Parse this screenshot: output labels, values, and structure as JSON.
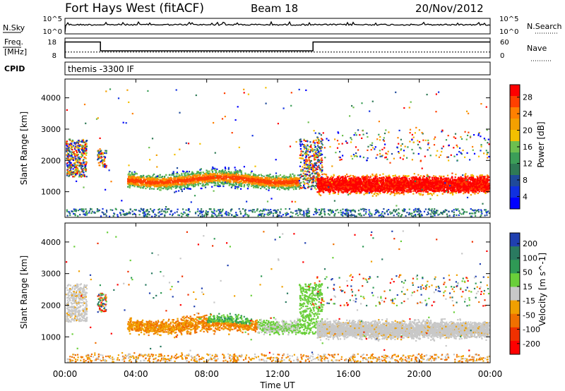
{
  "header": {
    "station": "Fort Hays West (fitACF)",
    "beam": "Beam 18",
    "date": "20/Nov/2012"
  },
  "chart_data": [
    {
      "type": "line",
      "name": "sky-search-panel",
      "left_label": "N.Sky",
      "right_label": "N.Search",
      "left_ticks": [
        "10^5",
        "10^0"
      ],
      "right_ticks": [
        "10^5",
        "10^0"
      ]
    },
    {
      "type": "line",
      "name": "freq-nave-panel",
      "left_label_top": "Freq.",
      "left_label_bottom": "[MHz]",
      "right_label": "Nave",
      "left_ticks": [
        "18",
        "8"
      ],
      "right_ticks": [
        "60",
        "0"
      ],
      "freq_series": {
        "x": [
          0.0,
          0.0,
          2.0,
          2.0,
          14.0,
          14.0,
          24.0
        ],
        "y": [
          8,
          17,
          17,
          12,
          12,
          17,
          17
        ]
      },
      "nave_series": {
        "x": [
          0.0,
          2.0,
          14.0,
          24.0
        ],
        "y": [
          20,
          20,
          20,
          20
        ]
      }
    },
    {
      "type": "label",
      "name": "cpid-panel",
      "label": "CPID",
      "text": "themis -3300 IF"
    },
    {
      "type": "heatmap",
      "name": "power-panel",
      "ylabel": "Slant Range [km]",
      "ylim": [
        180,
        4600
      ],
      "yticks": [
        "1000",
        "2000",
        "3000",
        "4000"
      ],
      "xlim": [
        0,
        24
      ],
      "colorbar_label": "Power [dB]",
      "colorbar_ticks": [
        "28",
        "24",
        "20",
        "16",
        "12",
        "8",
        "4"
      ],
      "colors": [
        "#ff0000",
        "#ff4000",
        "#ff8000",
        "#f4a000",
        "#f3c000",
        "#6dbf4f",
        "#3c9e58",
        "#2f7a55",
        "#1f4a9a",
        "#1030e0",
        "#0000ff"
      ]
    },
    {
      "type": "heatmap",
      "name": "velocity-panel",
      "ylabel": "Slant Range [km]",
      "ylim": [
        180,
        4600
      ],
      "yticks": [
        "1000",
        "2000",
        "3000",
        "4000"
      ],
      "xlim": [
        0,
        24
      ],
      "xticks": [
        "00:00",
        "04:00",
        "08:00",
        "12:00",
        "16:00",
        "20:00",
        "00:00"
      ],
      "xlabel": "Time UT",
      "colorbar_label": "Velocity [m s^-1]",
      "colorbar_ticks": [
        "200",
        "100",
        "50",
        "15",
        "-15",
        "-50",
        "-100",
        "-200"
      ],
      "colors": [
        "#2040b0",
        "#2a7a60",
        "#2f9a55",
        "#6acf3a",
        "#c8c8c8",
        "#f0a000",
        "#f07000",
        "#f03000",
        "#ff0000"
      ]
    }
  ]
}
